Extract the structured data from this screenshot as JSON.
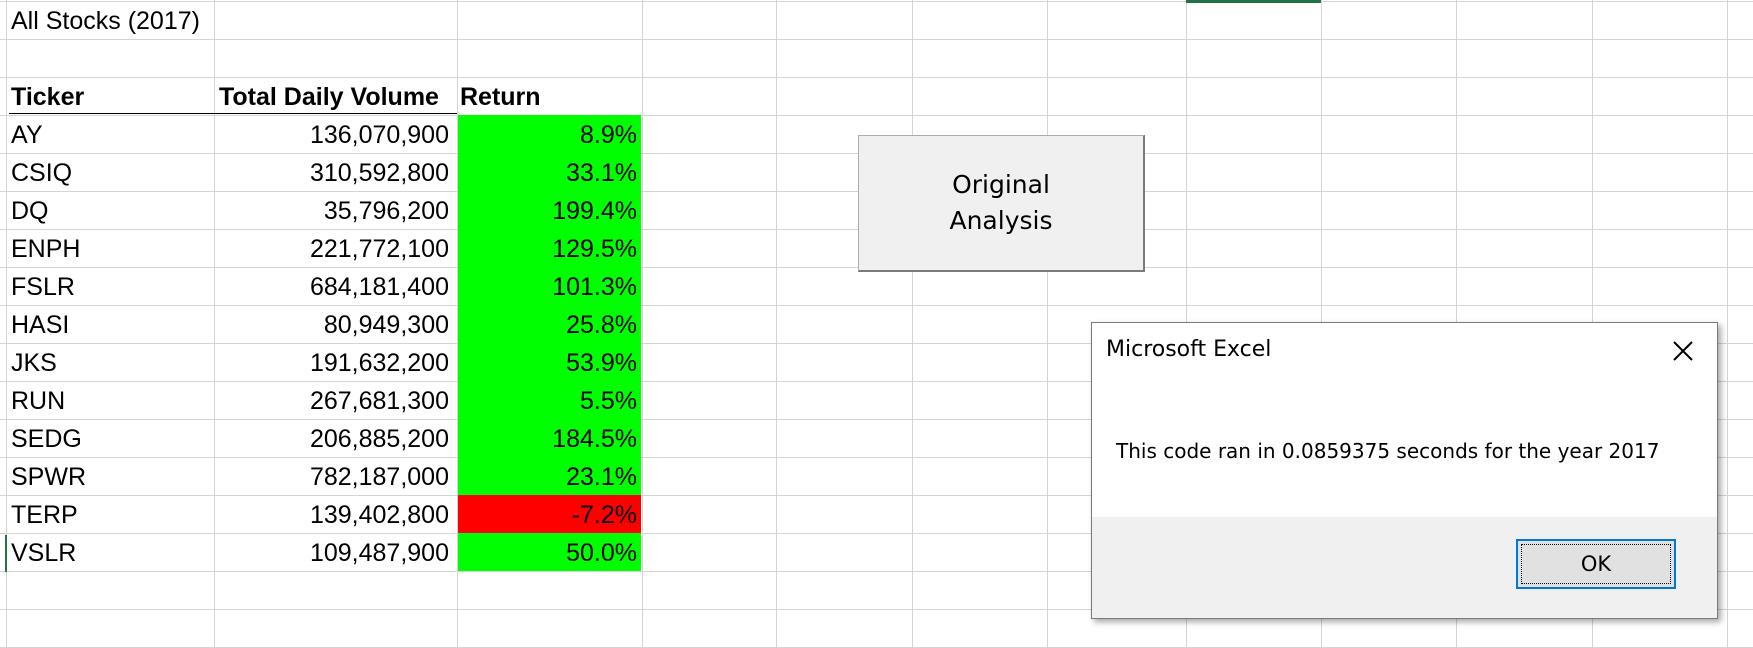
{
  "sheet": {
    "title": "All Stocks (2017)",
    "headers": {
      "ticker": "Ticker",
      "volume": "Total Daily Volume",
      "return": "Return"
    },
    "rows": [
      {
        "ticker": "AY",
        "volume": "136,070,900",
        "return": "8.9%",
        "status": "positive"
      },
      {
        "ticker": "CSIQ",
        "volume": "310,592,800",
        "return": "33.1%",
        "status": "positive"
      },
      {
        "ticker": "DQ",
        "volume": "35,796,200",
        "return": "199.4%",
        "status": "positive"
      },
      {
        "ticker": "ENPH",
        "volume": "221,772,100",
        "return": "129.5%",
        "status": "positive"
      },
      {
        "ticker": "FSLR",
        "volume": "684,181,400",
        "return": "101.3%",
        "status": "positive"
      },
      {
        "ticker": "HASI",
        "volume": "80,949,300",
        "return": "25.8%",
        "status": "positive"
      },
      {
        "ticker": "JKS",
        "volume": "191,632,200",
        "return": "53.9%",
        "status": "positive"
      },
      {
        "ticker": "RUN",
        "volume": "267,681,300",
        "return": "5.5%",
        "status": "positive"
      },
      {
        "ticker": "SEDG",
        "volume": "206,885,200",
        "return": "184.5%",
        "status": "positive"
      },
      {
        "ticker": "SPWR",
        "volume": "782,187,000",
        "return": "23.1%",
        "status": "positive"
      },
      {
        "ticker": "TERP",
        "volume": "139,402,800",
        "return": "-7.2%",
        "status": "negative"
      },
      {
        "ticker": "VSLR",
        "volume": "109,487,900",
        "return": "50.0%",
        "status": "positive"
      }
    ]
  },
  "button": {
    "line1": "Original",
    "line2": "Analysis"
  },
  "dialog": {
    "title": "Microsoft Excel",
    "message": "This code ran in 0.0859375 seconds for the year 2017",
    "ok_label": "OK",
    "close_icon": "close-icon"
  },
  "colors": {
    "positive": "#00ff00",
    "negative": "#ff0000",
    "grid": "#d4d4d4",
    "accent": "#217346",
    "focus": "#0078d7"
  }
}
